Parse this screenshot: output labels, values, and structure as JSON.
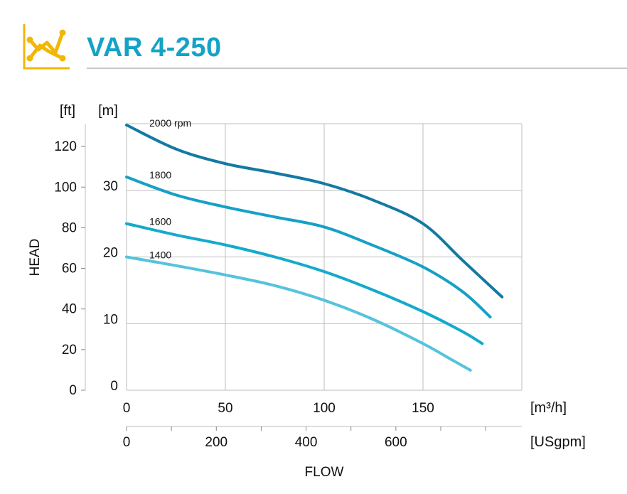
{
  "title": "VAR 4-250",
  "icon": "line-chart-icon",
  "colors": {
    "accent": "#f2b705",
    "title": "#13a3c6",
    "grid": "#bdbdbd",
    "series": [
      "#1479a3",
      "#15a1c5",
      "#14aacb",
      "#55c3dc"
    ]
  },
  "chart_data": {
    "type": "line",
    "xlabel": "FLOW",
    "ylabel": "HEAD",
    "x_unit_primary": "[m³/h]",
    "x_unit_secondary": "[USgpm]",
    "y_unit_feet": "[ft]",
    "y_unit_meters": "[m]",
    "xlim": [
      0,
      200
    ],
    "ylim": [
      0,
      40
    ],
    "grid": true,
    "x_ticks_m3h": [
      0,
      50,
      100,
      150
    ],
    "x_ticks_usgpm": [
      0,
      200,
      400,
      600
    ],
    "y_ticks_m": [
      0,
      10,
      20,
      30
    ],
    "y_ticks_ft": [
      0,
      20,
      40,
      60,
      80,
      100,
      120
    ],
    "series": [
      {
        "name": "2000 rpm",
        "x": [
          0,
          25,
          50,
          75,
          100,
          125,
          150,
          170,
          190
        ],
        "y": [
          39.8,
          36.2,
          34.0,
          32.6,
          31.0,
          28.5,
          25.0,
          19.5,
          14.0
        ]
      },
      {
        "name": "1800",
        "x": [
          0,
          25,
          50,
          75,
          100,
          125,
          150,
          170,
          184
        ],
        "y": [
          32.0,
          29.3,
          27.5,
          26.0,
          24.5,
          21.7,
          18.5,
          14.8,
          11.0
        ]
      },
      {
        "name": "1600",
        "x": [
          0,
          25,
          50,
          75,
          100,
          125,
          150,
          170,
          180
        ],
        "y": [
          25.0,
          23.3,
          21.8,
          20.0,
          17.8,
          15.0,
          11.8,
          8.8,
          7.0
        ]
      },
      {
        "name": "1400",
        "x": [
          0,
          25,
          50,
          75,
          100,
          125,
          150,
          165,
          174
        ],
        "y": [
          20.0,
          18.7,
          17.3,
          15.7,
          13.5,
          10.6,
          7.0,
          4.5,
          3.0
        ]
      }
    ]
  }
}
